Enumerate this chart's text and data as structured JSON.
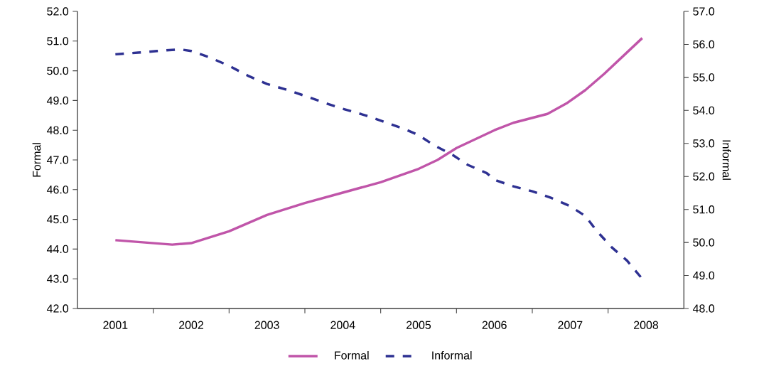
{
  "chart_data": {
    "type": "line",
    "xlabel": null,
    "ylabel": "Formal",
    "y2label": "Informal",
    "legend": "bottom",
    "grid": false,
    "marker": "none",
    "xlim": [
      2000.5,
      2008.5
    ],
    "xticks": [
      {
        "value": 2001,
        "label": "2001"
      },
      {
        "value": 2002,
        "label": "2002"
      },
      {
        "value": 2003,
        "label": "2003"
      },
      {
        "value": 2004,
        "label": "2004"
      },
      {
        "value": 2005,
        "label": "2005"
      },
      {
        "value": 2006,
        "label": "2006"
      },
      {
        "value": 2007,
        "label": "2007"
      },
      {
        "value": 2008,
        "label": "2008"
      },
      {
        "value": 2001.5,
        "label": null
      },
      {
        "value": 2002.5,
        "label": null
      },
      {
        "value": 2003.5,
        "label": null
      },
      {
        "value": 2004.5,
        "label": null
      },
      {
        "value": 2005.5,
        "label": null
      },
      {
        "value": 2006.5,
        "label": null
      },
      {
        "value": 2007.5,
        "label": null
      }
    ],
    "ylim": [
      42,
      52
    ],
    "yticks": [
      {
        "value": 42,
        "label": "42.0"
      },
      {
        "value": 43,
        "label": "43.0"
      },
      {
        "value": 44,
        "label": "44.0"
      },
      {
        "value": 45,
        "label": "45.0"
      },
      {
        "value": 46,
        "label": "46.0"
      },
      {
        "value": 47,
        "label": "47.0"
      },
      {
        "value": 48,
        "label": "48.0"
      },
      {
        "value": 49,
        "label": "49.0"
      },
      {
        "value": 50,
        "label": "50.0"
      },
      {
        "value": 51,
        "label": "51.0"
      },
      {
        "value": 52,
        "label": "52.0"
      }
    ],
    "y2lim": [
      48,
      57
    ],
    "y2ticks": [
      {
        "value": 48,
        "label": "48.0"
      },
      {
        "value": 49,
        "label": "49.0"
      },
      {
        "value": 50,
        "label": "50.0"
      },
      {
        "value": 51,
        "label": "51.0"
      },
      {
        "value": 52,
        "label": "52.0"
      },
      {
        "value": 53,
        "label": "53.0"
      },
      {
        "value": 54,
        "label": "54.0"
      },
      {
        "value": 55,
        "label": "55.0"
      },
      {
        "value": 56,
        "label": "56.0"
      },
      {
        "value": 57,
        "label": "57.0"
      }
    ],
    "series": [
      {
        "name": "Formal",
        "color": "#c055a9",
        "line_style": "solid",
        "x": [
          2001,
          2001.75,
          2002,
          2002.5,
          2003,
          2003.5,
          2004,
          2004.5,
          2005,
          2005.25,
          2005.5,
          2006,
          2006.25,
          2006.7,
          2006.95,
          2007.2,
          2007.45,
          2007.95
        ],
        "values": [
          44.3,
          44.15,
          44.2,
          44.6,
          45.15,
          45.55,
          45.9,
          46.25,
          46.7,
          47.0,
          47.4,
          48.0,
          48.25,
          48.55,
          48.9,
          49.35,
          49.9,
          51.1
        ]
      },
      {
        "name": "Informal",
        "color": "#2e3192",
        "line_style": "dashed",
        "axis": "y2",
        "x": [
          2001,
          2001.3,
          2001.55,
          2001.85,
          2002,
          2002.25,
          2002.5,
          2002.75,
          2003,
          2003.3,
          2003.55,
          2003.8,
          2004,
          2004.3,
          2004.55,
          2004.8,
          2005,
          2005.2,
          2005.45,
          2005.65,
          2005.9,
          2006,
          2006.25,
          2006.5,
          2006.75,
          2007,
          2007.2,
          2007.35,
          2007.55,
          2007.75,
          2007.95
        ],
        "values": [
          55.7,
          55.75,
          55.8,
          55.85,
          55.8,
          55.6,
          55.35,
          55.05,
          54.8,
          54.6,
          54.4,
          54.2,
          54.05,
          53.85,
          53.65,
          53.45,
          53.25,
          52.95,
          52.65,
          52.35,
          52.1,
          51.9,
          51.7,
          51.55,
          51.35,
          51.1,
          50.8,
          50.35,
          49.85,
          49.45,
          48.9
        ]
      }
    ]
  }
}
